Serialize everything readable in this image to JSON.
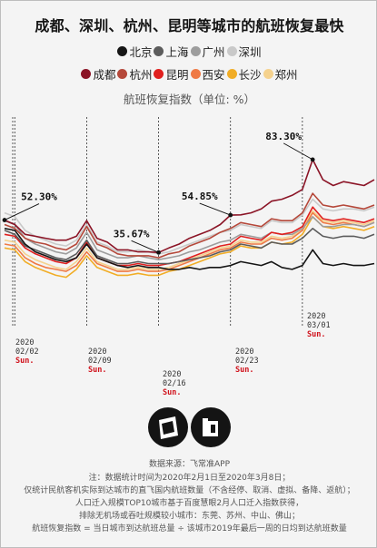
{
  "title": "成都、深圳、杭州、昆明等城市的航班恢复最快",
  "legend_row1": [
    "北京",
    "上海",
    "广州",
    "深圳"
  ],
  "legend_row2": [
    "成都",
    "杭州",
    "昆明",
    "西安",
    "长沙",
    "郑州"
  ],
  "subtitle": "航班恢复指数（单位: %）",
  "chart_data": {
    "type": "line",
    "x": [
      "2020-02-01",
      "2020-02-02",
      "2020-02-03",
      "2020-02-04",
      "2020-02-05",
      "2020-02-06",
      "2020-02-07",
      "2020-02-08",
      "2020-02-09",
      "2020-02-10",
      "2020-02-11",
      "2020-02-12",
      "2020-02-13",
      "2020-02-14",
      "2020-02-15",
      "2020-02-16",
      "2020-02-17",
      "2020-02-18",
      "2020-02-19",
      "2020-02-20",
      "2020-02-21",
      "2020-02-22",
      "2020-02-23",
      "2020-02-24",
      "2020-02-25",
      "2020-02-26",
      "2020-02-27",
      "2020-02-28",
      "2020-02-29",
      "2020-03-01",
      "2020-03-02",
      "2020-03-03",
      "2020-03-04",
      "2020-03-05",
      "2020-03-06",
      "2020-03-07",
      "2020-03-08"
    ],
    "ylabel": "航班恢复指数（单位: %）",
    "ylim": [
      0,
      100
    ],
    "series": [
      {
        "name": "北京",
        "color": "#151515",
        "values": [
          48,
          47,
          40,
          36,
          34,
          32,
          31,
          33,
          40,
          33,
          31,
          29,
          28,
          29,
          28,
          28,
          27,
          27,
          28,
          27,
          28,
          28,
          29,
          31,
          30,
          29,
          31,
          28,
          27,
          29,
          37,
          30,
          29,
          30,
          29,
          29,
          30
        ]
      },
      {
        "name": "上海",
        "color": "#5c5c5c",
        "values": [
          47,
          45,
          39,
          37,
          35,
          33,
          32,
          35,
          42,
          34,
          32,
          30,
          30,
          31,
          30,
          30,
          30,
          31,
          32,
          33,
          34,
          36,
          37,
          40,
          39,
          38,
          41,
          40,
          40,
          43,
          48,
          44,
          43,
          44,
          44,
          43,
          45
        ]
      },
      {
        "name": "广州",
        "color": "#9d9d9d",
        "values": [
          52,
          50,
          43,
          40,
          38,
          36,
          35,
          38,
          46,
          37,
          35,
          33,
          33,
          34,
          33,
          32,
          33,
          34,
          36,
          37,
          39,
          41,
          42,
          45,
          44,
          43,
          46,
          45,
          45,
          48,
          54,
          49,
          49,
          50,
          50,
          49,
          51
        ]
      },
      {
        "name": "深圳",
        "color": "#c9c9c9",
        "values": [
          56,
          54,
          47,
          44,
          42,
          40,
          39,
          42,
          50,
          41,
          39,
          36,
          36,
          37,
          36,
          35,
          36,
          38,
          40,
          42,
          44,
          46,
          47,
          50,
          49,
          48,
          52,
          51,
          51,
          55,
          63,
          58,
          57,
          58,
          58,
          57,
          59
        ]
      },
      {
        "name": "成都",
        "color": "#8b1426",
        "values": [
          52.3,
          50,
          45,
          44,
          43,
          42,
          42,
          44,
          52,
          43,
          41,
          37,
          37,
          36,
          36,
          35.67,
          38,
          40,
          43,
          45,
          47,
          50,
          54.85,
          55,
          56,
          58,
          62,
          63,
          65,
          68,
          83.3,
          73,
          70,
          72,
          71,
          70,
          73
        ]
      },
      {
        "name": "杭州",
        "color": "#b5483a",
        "values": [
          50,
          48,
          43,
          41,
          40,
          38,
          37,
          40,
          49,
          40,
          38,
          35,
          34,
          34,
          34,
          33,
          35,
          36,
          39,
          41,
          43,
          46,
          48,
          51,
          50,
          49,
          53,
          52,
          52,
          56,
          66,
          60,
          59,
          60,
          59,
          58,
          60
        ]
      },
      {
        "name": "昆明",
        "color": "#e0201f",
        "values": [
          45,
          44,
          38,
          35,
          33,
          31,
          30,
          33,
          41,
          33,
          31,
          29,
          29,
          30,
          29,
          29,
          30,
          31,
          33,
          35,
          37,
          39,
          40,
          44,
          43,
          42,
          46,
          45,
          46,
          49,
          59,
          53,
          52,
          53,
          52,
          51,
          53
        ]
      },
      {
        "name": "西安",
        "color": "#ef7a45",
        "values": [
          40,
          39,
          33,
          30,
          28,
          27,
          26,
          29,
          36,
          30,
          28,
          26,
          26,
          27,
          26,
          26,
          27,
          29,
          31,
          33,
          35,
          37,
          38,
          41,
          40,
          40,
          43,
          42,
          43,
          47,
          56,
          51,
          50,
          51,
          50,
          49,
          51
        ]
      },
      {
        "name": "长沙",
        "color": "#f1ad26",
        "values": [
          38,
          37,
          31,
          28,
          26,
          24,
          23,
          27,
          34,
          28,
          26,
          24,
          24,
          25,
          24,
          24,
          26,
          27,
          29,
          31,
          33,
          35,
          36,
          39,
          38,
          38,
          41,
          40,
          41,
          45,
          54,
          49,
          48,
          49,
          48,
          47,
          49
        ]
      },
      {
        "name": "郑州",
        "color": "#f5d28e",
        "values": [
          42,
          41,
          35,
          32,
          30,
          28,
          27,
          31,
          38,
          31,
          29,
          27,
          27,
          28,
          27,
          27,
          28,
          30,
          32,
          34,
          36,
          38,
          39,
          42,
          41,
          41,
          44,
          43,
          44,
          48,
          57,
          52,
          51,
          52,
          51,
          50,
          52
        ]
      }
    ],
    "annotations": [
      {
        "x": "2020-02-01",
        "y": 52.3,
        "label": "52.30%"
      },
      {
        "x": "2020-02-16",
        "y": 35.67,
        "label": "35.67%"
      },
      {
        "x": "2020-02-23",
        "y": 54.85,
        "label": "54.85%"
      },
      {
        "x": "2020-03-02",
        "y": 83.3,
        "label": "83.30%"
      }
    ],
    "date_marks": [
      {
        "x": "2020-02-02",
        "date": [
          "2020",
          "02/02"
        ],
        "day": "Sun."
      },
      {
        "x": "2020-02-09",
        "date": [
          "2020",
          "02/09"
        ],
        "day": "Sun."
      },
      {
        "x": "2020-02-16",
        "date": [
          "2020",
          "02/16"
        ],
        "day": "Sun."
      },
      {
        "x": "2020-02-23",
        "date": [
          "2020",
          "02/23"
        ],
        "day": "Sun."
      },
      {
        "x": "2020-03-01",
        "date": [
          "2020",
          "03/01"
        ],
        "day": "Sun."
      }
    ]
  },
  "footer": {
    "source": "数据来源：飞常准APP",
    "note_lines": [
      "注：数据统计时间为2020年2月1日至2020年3月8日；",
      "仅统计民航客机实际到达城市的直飞国内航班数量（不含经停、取消、虚拟、备降、返航）；",
      "人口迁入规模TOP10城市基于百度慧眼2月人口迁入指数获得，",
      "排除无机场或吞吐规模较小城市：东莞、苏州、中山、佛山；",
      "航班恢复指数 = 当日城市到达航班总量 ÷ 该城市2019年最后一周的日均到达航班数量"
    ]
  }
}
